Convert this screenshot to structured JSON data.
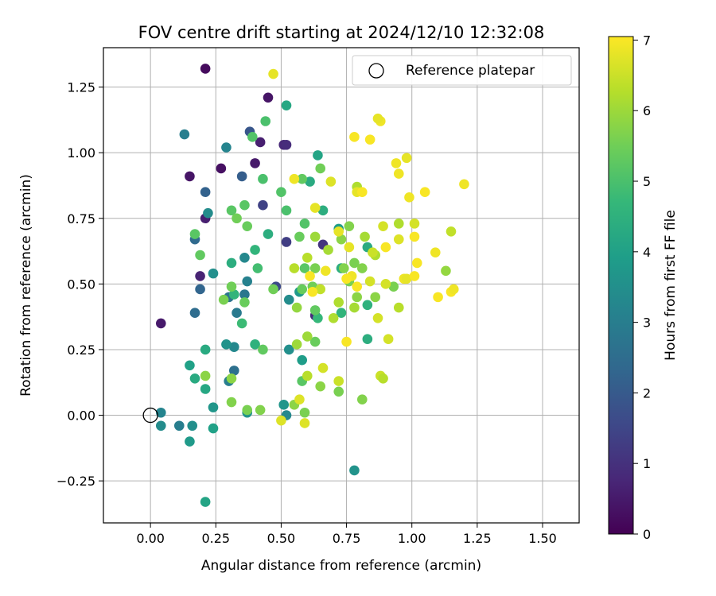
{
  "chart_data": {
    "type": "scatter",
    "title": "FOV centre drift starting at 2024/12/10 12:32:08",
    "xlabel": "Angular distance from reference (arcmin)",
    "ylabel": "Rotation from reference (arcmin)",
    "xlim": [
      -0.18,
      1.64
    ],
    "ylim": [
      -0.41,
      1.4
    ],
    "xticks": [
      "0.00",
      "0.25",
      "0.50",
      "0.75",
      "1.00",
      "1.25",
      "1.50"
    ],
    "xtick_values": [
      0.0,
      0.25,
      0.5,
      0.75,
      1.0,
      1.25,
      1.5
    ],
    "yticks": [
      "−0.25",
      "0.00",
      "0.25",
      "0.50",
      "0.75",
      "1.00",
      "1.25"
    ],
    "ytick_values": [
      -0.25,
      0.0,
      0.25,
      0.5,
      0.75,
      1.0,
      1.25
    ],
    "grid": true,
    "legend": {
      "placement": "upper right",
      "entries": [
        "Reference platepar"
      ]
    },
    "reference_point": {
      "x": 0.0,
      "y": 0.0
    },
    "colorbar": {
      "label": "Hours from first FF file",
      "colormap": "viridis",
      "range": [
        0,
        7.05
      ],
      "ticks": [
        "0",
        "1",
        "2",
        "3",
        "4",
        "5",
        "6",
        "7"
      ],
      "tick_values": [
        0,
        1,
        2,
        3,
        4,
        5,
        6,
        7
      ]
    },
    "points": [
      {
        "x": 0.21,
        "y": 1.32,
        "c": 0.2
      },
      {
        "x": 0.45,
        "y": 1.21,
        "c": 0.4
      },
      {
        "x": 0.51,
        "y": 1.03,
        "c": 0.8
      },
      {
        "x": 0.52,
        "y": 1.03,
        "c": 0.9
      },
      {
        "x": 0.42,
        "y": 1.04,
        "c": 0.6
      },
      {
        "x": 0.4,
        "y": 0.96,
        "c": 0.5
      },
      {
        "x": 0.27,
        "y": 0.94,
        "c": 0.3
      },
      {
        "x": 0.15,
        "y": 0.91,
        "c": 0.4
      },
      {
        "x": 0.21,
        "y": 0.75,
        "c": 0.6
      },
      {
        "x": 0.19,
        "y": 0.53,
        "c": 0.7
      },
      {
        "x": 0.04,
        "y": 0.35,
        "c": 0.5
      },
      {
        "x": 0.63,
        "y": 0.38,
        "c": 0.9
      },
      {
        "x": 0.66,
        "y": 0.65,
        "c": 1.1
      },
      {
        "x": 0.52,
        "y": 0.66,
        "c": 1.3
      },
      {
        "x": 0.43,
        "y": 0.8,
        "c": 1.4
      },
      {
        "x": 0.48,
        "y": 0.49,
        "c": 1.6
      },
      {
        "x": 0.38,
        "y": 1.08,
        "c": 1.9
      },
      {
        "x": 0.35,
        "y": 0.91,
        "c": 2.1
      },
      {
        "x": 0.21,
        "y": 0.85,
        "c": 2.2
      },
      {
        "x": 0.17,
        "y": 0.67,
        "c": 2.4
      },
      {
        "x": 0.19,
        "y": 0.48,
        "c": 2.3
      },
      {
        "x": 0.17,
        "y": 0.39,
        "c": 2.5
      },
      {
        "x": 0.3,
        "y": 0.45,
        "c": 2.7
      },
      {
        "x": 0.36,
        "y": 0.46,
        "c": 2.8
      },
      {
        "x": 0.33,
        "y": 0.39,
        "c": 2.9
      },
      {
        "x": 0.32,
        "y": 0.17,
        "c": 2.6
      },
      {
        "x": 0.3,
        "y": 0.13,
        "c": 3.0
      },
      {
        "x": 0.37,
        "y": 0.51,
        "c": 3.1
      },
      {
        "x": 0.13,
        "y": 1.07,
        "c": 3.0
      },
      {
        "x": 0.29,
        "y": 1.02,
        "c": 3.2
      },
      {
        "x": 0.22,
        "y": 0.77,
        "c": 3.4
      },
      {
        "x": 0.36,
        "y": 0.6,
        "c": 3.3
      },
      {
        "x": 0.24,
        "y": 0.54,
        "c": 3.5
      },
      {
        "x": 0.32,
        "y": 0.26,
        "c": 3.3
      },
      {
        "x": 0.29,
        "y": 0.27,
        "c": 3.6
      },
      {
        "x": 0.53,
        "y": 0.44,
        "c": 3.4
      },
      {
        "x": 0.53,
        "y": 0.25,
        "c": 3.5
      },
      {
        "x": 0.57,
        "y": 0.47,
        "c": 3.8
      },
      {
        "x": 0.04,
        "y": 0.01,
        "c": 3.2
      },
      {
        "x": 0.04,
        "y": -0.04,
        "c": 3.4
      },
      {
        "x": 0.11,
        "y": -0.04,
        "c": 3.0
      },
      {
        "x": 0.16,
        "y": -0.04,
        "c": 3.5
      },
      {
        "x": 0.15,
        "y": -0.1,
        "c": 3.8
      },
      {
        "x": 0.24,
        "y": -0.05,
        "c": 4.0
      },
      {
        "x": 0.24,
        "y": 0.03,
        "c": 3.7
      },
      {
        "x": 0.37,
        "y": 0.01,
        "c": 3.6
      },
      {
        "x": 0.51,
        "y": 0.04,
        "c": 3.7
      },
      {
        "x": 0.52,
        "y": 0.0,
        "c": 3.3
      },
      {
        "x": 0.78,
        "y": -0.21,
        "c": 3.6
      },
      {
        "x": 0.21,
        "y": -0.33,
        "c": 4.1
      },
      {
        "x": 0.21,
        "y": 0.1,
        "c": 4.2
      },
      {
        "x": 0.15,
        "y": 0.19,
        "c": 4.0
      },
      {
        "x": 0.17,
        "y": 0.14,
        "c": 4.3
      },
      {
        "x": 0.21,
        "y": 0.25,
        "c": 4.3
      },
      {
        "x": 0.58,
        "y": 0.21,
        "c": 3.9
      },
      {
        "x": 0.52,
        "y": 1.18,
        "c": 4.2
      },
      {
        "x": 0.64,
        "y": 0.99,
        "c": 4.1
      },
      {
        "x": 0.61,
        "y": 0.89,
        "c": 4.3
      },
      {
        "x": 0.66,
        "y": 0.78,
        "c": 4.4
      },
      {
        "x": 0.72,
        "y": 0.71,
        "c": 3.9
      },
      {
        "x": 0.83,
        "y": 0.64,
        "c": 4.3
      },
      {
        "x": 0.73,
        "y": 0.56,
        "c": 4.4
      },
      {
        "x": 0.83,
        "y": 0.42,
        "c": 4.5
      },
      {
        "x": 0.83,
        "y": 0.29,
        "c": 4.4
      },
      {
        "x": 0.73,
        "y": 0.39,
        "c": 4.6
      },
      {
        "x": 0.64,
        "y": 0.37,
        "c": 4.7
      },
      {
        "x": 0.45,
        "y": 0.69,
        "c": 4.4
      },
      {
        "x": 0.4,
        "y": 0.63,
        "c": 4.6
      },
      {
        "x": 0.31,
        "y": 0.58,
        "c": 4.4
      },
      {
        "x": 0.32,
        "y": 0.46,
        "c": 4.6
      },
      {
        "x": 0.4,
        "y": 0.27,
        "c": 4.5
      },
      {
        "x": 0.35,
        "y": 0.35,
        "c": 4.8
      },
      {
        "x": 0.41,
        "y": 0.56,
        "c": 4.9
      },
      {
        "x": 0.44,
        "y": 1.12,
        "c": 5.0
      },
      {
        "x": 0.39,
        "y": 1.06,
        "c": 5.1
      },
      {
        "x": 0.43,
        "y": 0.9,
        "c": 5.0
      },
      {
        "x": 0.17,
        "y": 0.69,
        "c": 5.2
      },
      {
        "x": 0.19,
        "y": 0.61,
        "c": 5.3
      },
      {
        "x": 0.31,
        "y": 0.78,
        "c": 5.2
      },
      {
        "x": 0.36,
        "y": 0.8,
        "c": 5.2
      },
      {
        "x": 0.33,
        "y": 0.75,
        "c": 5.5
      },
      {
        "x": 0.37,
        "y": 0.72,
        "c": 5.4
      },
      {
        "x": 0.5,
        "y": 0.85,
        "c": 5.1
      },
      {
        "x": 0.52,
        "y": 0.78,
        "c": 5.0
      },
      {
        "x": 0.58,
        "y": 0.9,
        "c": 5.3
      },
      {
        "x": 0.59,
        "y": 0.73,
        "c": 5.1
      },
      {
        "x": 0.57,
        "y": 0.68,
        "c": 5.4
      },
      {
        "x": 0.59,
        "y": 0.56,
        "c": 5.2
      },
      {
        "x": 0.58,
        "y": 0.48,
        "c": 5.4
      },
      {
        "x": 0.62,
        "y": 0.49,
        "c": 5.5
      },
      {
        "x": 0.63,
        "y": 0.56,
        "c": 5.6
      },
      {
        "x": 0.65,
        "y": 0.94,
        "c": 5.5
      },
      {
        "x": 0.63,
        "y": 0.4,
        "c": 5.3
      },
      {
        "x": 0.63,
        "y": 0.28,
        "c": 5.4
      },
      {
        "x": 0.58,
        "y": 0.13,
        "c": 5.2
      },
      {
        "x": 0.36,
        "y": 0.43,
        "c": 5.4
      },
      {
        "x": 0.28,
        "y": 0.44,
        "c": 5.6
      },
      {
        "x": 0.31,
        "y": 0.49,
        "c": 5.5
      },
      {
        "x": 0.43,
        "y": 0.25,
        "c": 5.3
      },
      {
        "x": 0.47,
        "y": 0.48,
        "c": 5.5
      },
      {
        "x": 0.21,
        "y": 0.15,
        "c": 5.8
      },
      {
        "x": 0.31,
        "y": 0.14,
        "c": 5.8
      },
      {
        "x": 0.31,
        "y": 0.05,
        "c": 5.7
      },
      {
        "x": 0.37,
        "y": 0.02,
        "c": 5.6
      },
      {
        "x": 0.42,
        "y": 0.02,
        "c": 5.7
      },
      {
        "x": 0.55,
        "y": 0.04,
        "c": 5.8
      },
      {
        "x": 0.59,
        "y": 0.01,
        "c": 5.6
      },
      {
        "x": 0.65,
        "y": 0.11,
        "c": 5.8
      },
      {
        "x": 0.72,
        "y": 0.09,
        "c": 5.6
      },
      {
        "x": 0.81,
        "y": 0.06,
        "c": 5.7
      },
      {
        "x": 0.78,
        "y": 0.58,
        "c": 5.6
      },
      {
        "x": 0.76,
        "y": 0.72,
        "c": 5.7
      },
      {
        "x": 0.73,
        "y": 0.67,
        "c": 5.8
      },
      {
        "x": 0.74,
        "y": 0.56,
        "c": 5.7
      },
      {
        "x": 0.76,
        "y": 0.51,
        "c": 5.6
      },
      {
        "x": 0.79,
        "y": 0.45,
        "c": 5.8
      },
      {
        "x": 0.81,
        "y": 0.56,
        "c": 5.7
      },
      {
        "x": 0.86,
        "y": 0.45,
        "c": 5.8
      },
      {
        "x": 0.93,
        "y": 0.49,
        "c": 5.6
      },
      {
        "x": 1.13,
        "y": 0.55,
        "c": 5.9
      },
      {
        "x": 0.56,
        "y": 0.41,
        "c": 5.9
      },
      {
        "x": 0.6,
        "y": 0.3,
        "c": 6.0
      },
      {
        "x": 0.56,
        "y": 0.27,
        "c": 6.0
      },
      {
        "x": 0.63,
        "y": 0.68,
        "c": 6.0
      },
      {
        "x": 0.68,
        "y": 0.63,
        "c": 6.1
      },
      {
        "x": 0.7,
        "y": 0.37,
        "c": 6.2
      },
      {
        "x": 0.72,
        "y": 0.43,
        "c": 6.2
      },
      {
        "x": 0.78,
        "y": 0.41,
        "c": 6.1
      },
      {
        "x": 0.82,
        "y": 0.68,
        "c": 6.1
      },
      {
        "x": 0.86,
        "y": 0.61,
        "c": 6.2
      },
      {
        "x": 0.79,
        "y": 0.87,
        "c": 6.2
      },
      {
        "x": 0.95,
        "y": 0.73,
        "c": 6.2
      },
      {
        "x": 0.95,
        "y": 0.41,
        "c": 6.3
      },
      {
        "x": 0.6,
        "y": 0.6,
        "c": 6.3
      },
      {
        "x": 0.55,
        "y": 0.56,
        "c": 6.3
      },
      {
        "x": 0.6,
        "y": 0.15,
        "c": 6.3
      },
      {
        "x": 0.65,
        "y": 0.48,
        "c": 6.4
      },
      {
        "x": 0.72,
        "y": 0.13,
        "c": 6.5
      },
      {
        "x": 0.88,
        "y": 0.15,
        "c": 6.5
      },
      {
        "x": 0.89,
        "y": 0.14,
        "c": 6.3
      },
      {
        "x": 1.15,
        "y": 0.7,
        "c": 6.4
      },
      {
        "x": 0.85,
        "y": 0.62,
        "c": 6.5
      },
      {
        "x": 0.84,
        "y": 0.51,
        "c": 6.6
      },
      {
        "x": 0.87,
        "y": 0.37,
        "c": 6.6
      },
      {
        "x": 0.9,
        "y": 0.5,
        "c": 6.6
      },
      {
        "x": 0.89,
        "y": 0.72,
        "c": 6.6
      },
      {
        "x": 0.95,
        "y": 0.67,
        "c": 6.7
      },
      {
        "x": 1.01,
        "y": 0.73,
        "c": 6.6
      },
      {
        "x": 0.91,
        "y": 0.29,
        "c": 6.6
      },
      {
        "x": 0.66,
        "y": 0.18,
        "c": 6.6
      },
      {
        "x": 0.57,
        "y": 0.06,
        "c": 6.7
      },
      {
        "x": 0.5,
        "y": -0.02,
        "c": 6.7
      },
      {
        "x": 0.59,
        "y": -0.03,
        "c": 6.7
      },
      {
        "x": 0.47,
        "y": 1.3,
        "c": 6.8
      },
      {
        "x": 0.55,
        "y": 0.9,
        "c": 6.9
      },
      {
        "x": 0.69,
        "y": 0.89,
        "c": 6.7
      },
      {
        "x": 0.72,
        "y": 0.7,
        "c": 6.8
      },
      {
        "x": 0.63,
        "y": 0.79,
        "c": 6.8
      },
      {
        "x": 0.79,
        "y": 0.85,
        "c": 6.8
      },
      {
        "x": 0.76,
        "y": 0.64,
        "c": 6.8
      },
      {
        "x": 0.77,
        "y": 0.53,
        "c": 6.9
      },
      {
        "x": 0.88,
        "y": 1.12,
        "c": 6.9
      },
      {
        "x": 0.87,
        "y": 1.13,
        "c": 6.8
      },
      {
        "x": 0.97,
        "y": 0.52,
        "c": 6.9
      },
      {
        "x": 0.98,
        "y": 0.52,
        "c": 6.8
      },
      {
        "x": 0.67,
        "y": 0.55,
        "c": 6.9
      },
      {
        "x": 0.61,
        "y": 0.53,
        "c": 7.0
      },
      {
        "x": 0.62,
        "y": 0.47,
        "c": 7.0
      },
      {
        "x": 0.75,
        "y": 0.28,
        "c": 7.0
      },
      {
        "x": 0.78,
        "y": 1.06,
        "c": 7.0
      },
      {
        "x": 0.84,
        "y": 1.05,
        "c": 7.0
      },
      {
        "x": 0.81,
        "y": 0.85,
        "c": 7.0
      },
      {
        "x": 0.94,
        "y": 0.96,
        "c": 6.9
      },
      {
        "x": 0.95,
        "y": 0.92,
        "c": 6.9
      },
      {
        "x": 0.98,
        "y": 0.98,
        "c": 6.8
      },
      {
        "x": 0.99,
        "y": 0.83,
        "c": 6.9
      },
      {
        "x": 1.05,
        "y": 0.85,
        "c": 7.0
      },
      {
        "x": 0.9,
        "y": 0.64,
        "c": 7.0
      },
      {
        "x": 1.01,
        "y": 0.68,
        "c": 7.0
      },
      {
        "x": 1.02,
        "y": 0.58,
        "c": 7.0
      },
      {
        "x": 1.01,
        "y": 0.53,
        "c": 7.0
      },
      {
        "x": 1.09,
        "y": 0.62,
        "c": 6.9
      },
      {
        "x": 1.1,
        "y": 0.45,
        "c": 7.0
      },
      {
        "x": 1.15,
        "y": 0.47,
        "c": 7.0
      },
      {
        "x": 1.16,
        "y": 0.48,
        "c": 6.9
      },
      {
        "x": 1.2,
        "y": 0.88,
        "c": 6.9
      },
      {
        "x": 0.75,
        "y": 0.52,
        "c": 7.0
      },
      {
        "x": 0.79,
        "y": 0.49,
        "c": 7.0
      }
    ]
  }
}
